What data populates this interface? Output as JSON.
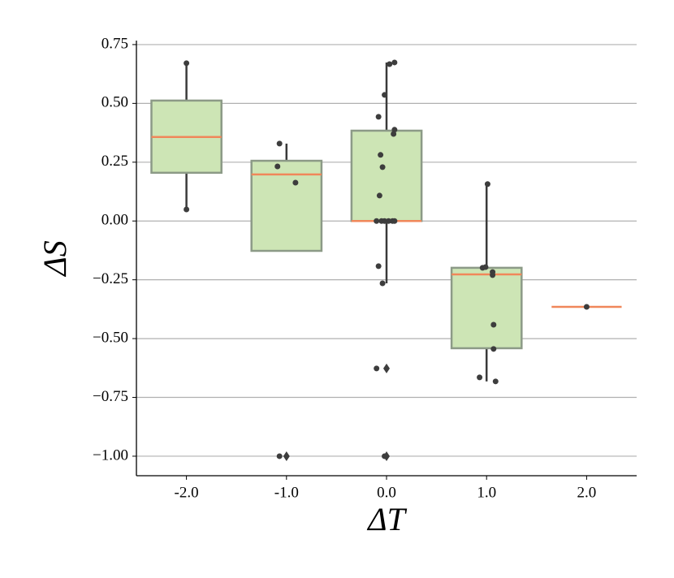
{
  "chart_data": {
    "type": "box",
    "xlabel": "ΔT",
    "ylabel": "ΔS",
    "x": [
      -2,
      -1,
      0,
      1,
      2
    ],
    "boxes": [
      {
        "q1": 0.205,
        "median": 0.357,
        "q3": 0.512,
        "whislo": 0.049,
        "whishi": 0.671,
        "fliers": []
      },
      {
        "q1": -0.127,
        "median": 0.198,
        "q3": 0.256,
        "whislo": -0.127,
        "whishi": 0.329,
        "fliers": [
          -1.0
        ]
      },
      {
        "q1": 0.0,
        "median": 0.0,
        "q3": 0.384,
        "whislo": -0.265,
        "whishi": 0.674,
        "fliers": [
          -0.627,
          -1.0
        ]
      },
      {
        "q1": -0.541,
        "median": -0.227,
        "q3": -0.199,
        "whislo": -0.682,
        "whishi": 0.157,
        "fliers": []
      },
      {
        "q1": -0.365,
        "median": -0.365,
        "q3": -0.365,
        "whislo": -0.365,
        "whishi": -0.365,
        "fliers": []
      }
    ],
    "points": {
      "x": [
        -2.0,
        -2.0,
        -1.07,
        -1.09,
        -0.91,
        -1.07,
        0.03,
        0.08,
        -0.02,
        -0.08,
        -0.06,
        -0.04,
        -0.07,
        0.08,
        0.07,
        -0.1,
        -0.05,
        -0.02,
        0.02,
        0.06,
        0.08,
        -0.08,
        -0.04,
        -0.1,
        -0.02,
        1.01,
        0.96,
        0.99,
        1.06,
        1.06,
        1.07,
        1.07,
        0.93,
        1.09,
        2.0
      ],
      "y": [
        0.671,
        0.049,
        0.329,
        0.232,
        0.163,
        -1.0,
        0.667,
        0.674,
        0.536,
        0.443,
        0.281,
        0.229,
        0.108,
        0.388,
        0.37,
        0.0,
        0.0,
        0.0,
        0.0,
        0.0,
        0.0,
        -0.192,
        -0.265,
        -0.627,
        -1.0,
        0.157,
        -0.199,
        -0.196,
        -0.217,
        -0.23,
        -0.441,
        -0.544,
        -0.665,
        -0.682,
        -0.365
      ]
    },
    "box_color": "#cde5b5",
    "median_color": "#f0875a",
    "point_color": "#3d3d3d",
    "xlim": [
      -2.5,
      2.5
    ],
    "ylim": [
      -1.083,
      0.767
    ],
    "xticks": [
      {
        "value": -2,
        "label": "-2.0"
      },
      {
        "value": -1,
        "label": "-1.0"
      },
      {
        "value": 0,
        "label": "0.0"
      },
      {
        "value": 1,
        "label": "1.0"
      },
      {
        "value": 2,
        "label": "2.0"
      }
    ],
    "yticks": [
      {
        "value": -1.0,
        "label": "−1.00"
      },
      {
        "value": -0.75,
        "label": "−0.75"
      },
      {
        "value": -0.5,
        "label": "−0.50"
      },
      {
        "value": -0.25,
        "label": "−0.25"
      },
      {
        "value": 0.0,
        "label": "0.00"
      },
      {
        "value": 0.25,
        "label": "0.25"
      },
      {
        "value": 0.5,
        "label": "0.50"
      },
      {
        "value": 0.75,
        "label": "0.75"
      }
    ],
    "grid": true
  }
}
